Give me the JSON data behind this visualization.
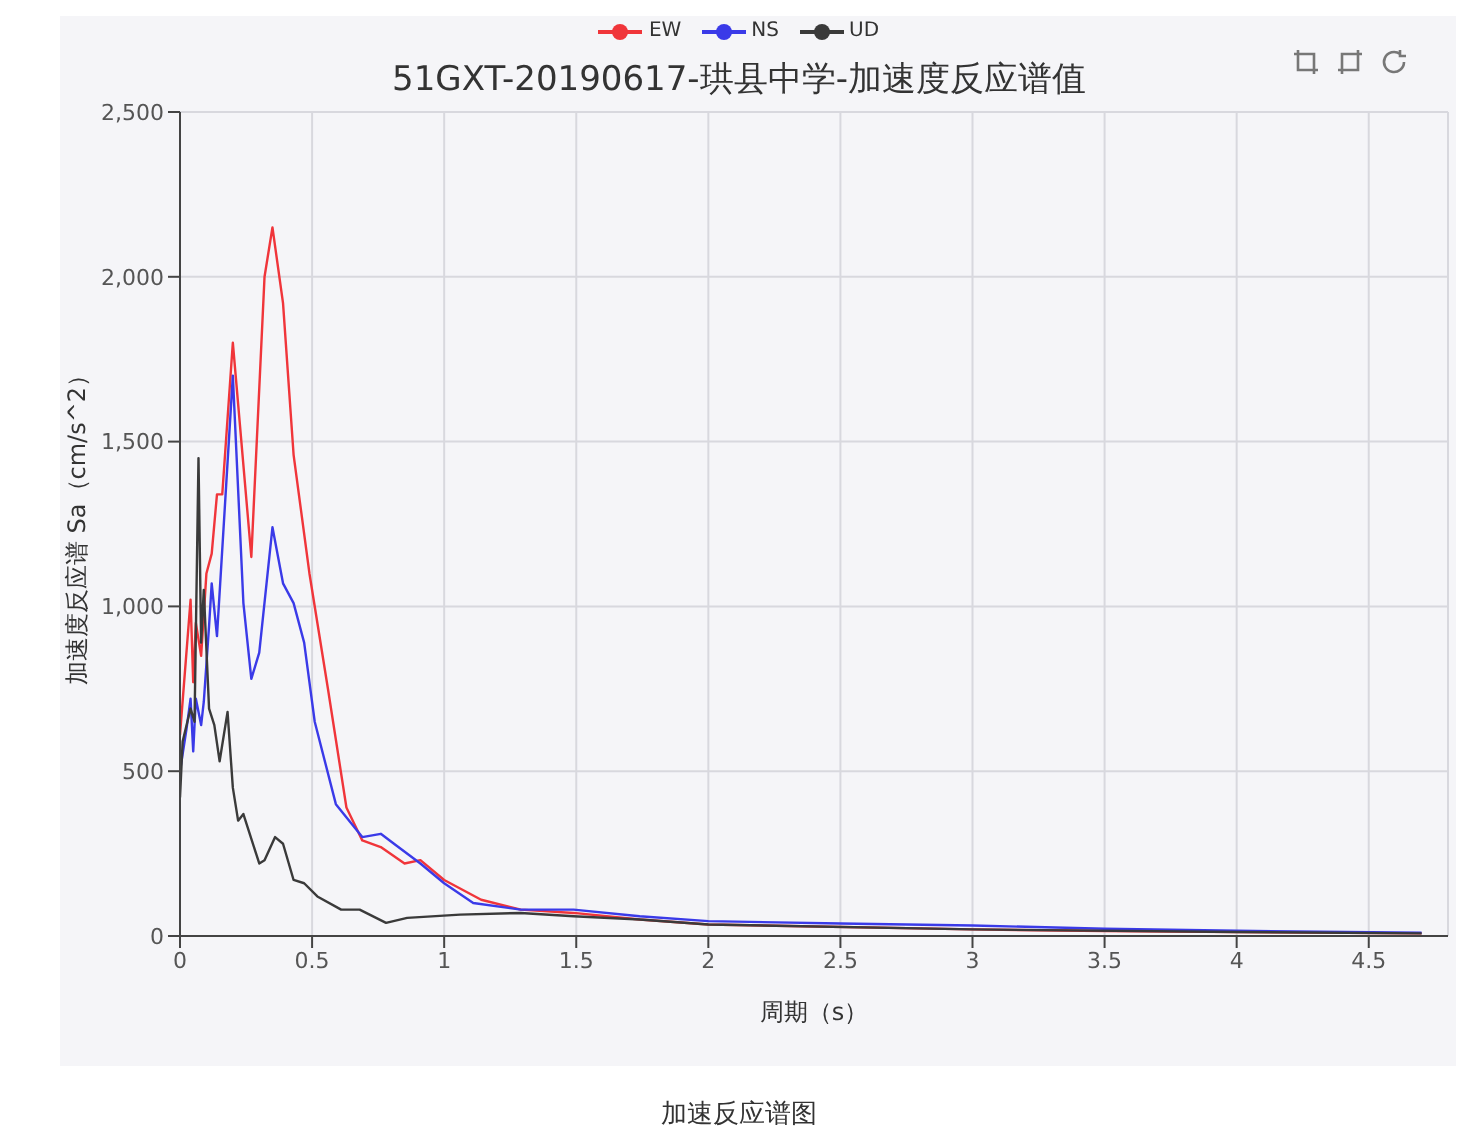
{
  "chart_data": {
    "type": "line",
    "title": "51GXT-20190617-珙县中学-加速度反应谱值",
    "xlabel": "周期（s）",
    "ylabel": "加速度反应谱 Sa（cm/s^2）",
    "annotations": [
      "加速反应谱图"
    ],
    "legend": "top",
    "grid": true,
    "xlim": [
      0,
      4.8
    ],
    "xticks": [
      0,
      0.5,
      1,
      1.5,
      2,
      2.5,
      3,
      3.5,
      4,
      4.5
    ],
    "ylim": [
      0,
      2500
    ],
    "yticks": [
      0,
      500,
      {
        "value": 1000,
        "label": "1,000"
      },
      {
        "value": 1500,
        "label": "1,500"
      },
      {
        "value": 2000,
        "label": "2,000"
      },
      {
        "value": 2500,
        "label": "2,500"
      }
    ],
    "series": [
      {
        "name": "EW",
        "color": "#f0353a",
        "x": [
          0,
          0.04,
          0.05,
          0.06,
          0.08,
          0.1,
          0.12,
          0.14,
          0.16,
          0.2,
          0.27,
          0.32,
          0.35,
          0.39,
          0.43,
          0.49,
          0.56,
          0.63,
          0.69,
          0.76,
          0.85,
          0.91,
          1.0,
          1.14,
          1.29,
          1.49,
          1.74,
          2,
          3,
          3.5,
          4,
          4.7
        ],
        "values": [
          610,
          1020,
          770,
          950,
          850,
          1100,
          1160,
          1340,
          1340,
          1800,
          1150,
          2000,
          2150,
          1920,
          1460,
          1100,
          750,
          390,
          290,
          270,
          220,
          230,
          170,
          110,
          80,
          70,
          50,
          35,
          20,
          15,
          12,
          8
        ]
      },
      {
        "name": "NS",
        "color": "#3a3ae8",
        "x": [
          0,
          0.025,
          0.04,
          0.05,
          0.06,
          0.08,
          0.09,
          0.11,
          0.12,
          0.14,
          0.2,
          0.24,
          0.27,
          0.3,
          0.35,
          0.39,
          0.43,
          0.47,
          0.51,
          0.59,
          0.69,
          0.76,
          0.81,
          0.91,
          1.0,
          1.11,
          1.29,
          1.49,
          1.74,
          2,
          2.5,
          3,
          3.5,
          4,
          4.7
        ],
        "values": [
          500,
          630,
          720,
          560,
          720,
          640,
          710,
          940,
          1070,
          910,
          1700,
          1010,
          780,
          860,
          1240,
          1070,
          1010,
          890,
          650,
          400,
          300,
          310,
          280,
          220,
          160,
          100,
          80,
          80,
          60,
          45,
          38,
          32,
          22,
          16,
          10
        ]
      },
      {
        "name": "UD",
        "color": "#3a3a3a",
        "x": [
          0,
          0.01,
          0.04,
          0.055,
          0.07,
          0.08,
          0.09,
          0.11,
          0.13,
          0.15,
          0.18,
          0.2,
          0.22,
          0.24,
          0.3,
          0.32,
          0.36,
          0.39,
          0.43,
          0.47,
          0.52,
          0.61,
          0.68,
          0.78,
          0.86,
          1.06,
          1.29,
          1.49,
          1.74,
          2,
          3,
          4,
          4.7
        ],
        "values": [
          420,
          590,
          690,
          650,
          1450,
          890,
          1050,
          690,
          640,
          530,
          680,
          450,
          350,
          370,
          220,
          230,
          300,
          280,
          170,
          160,
          120,
          80,
          80,
          40,
          55,
          65,
          70,
          60,
          50,
          35,
          20,
          12,
          8
        ]
      }
    ]
  }
}
